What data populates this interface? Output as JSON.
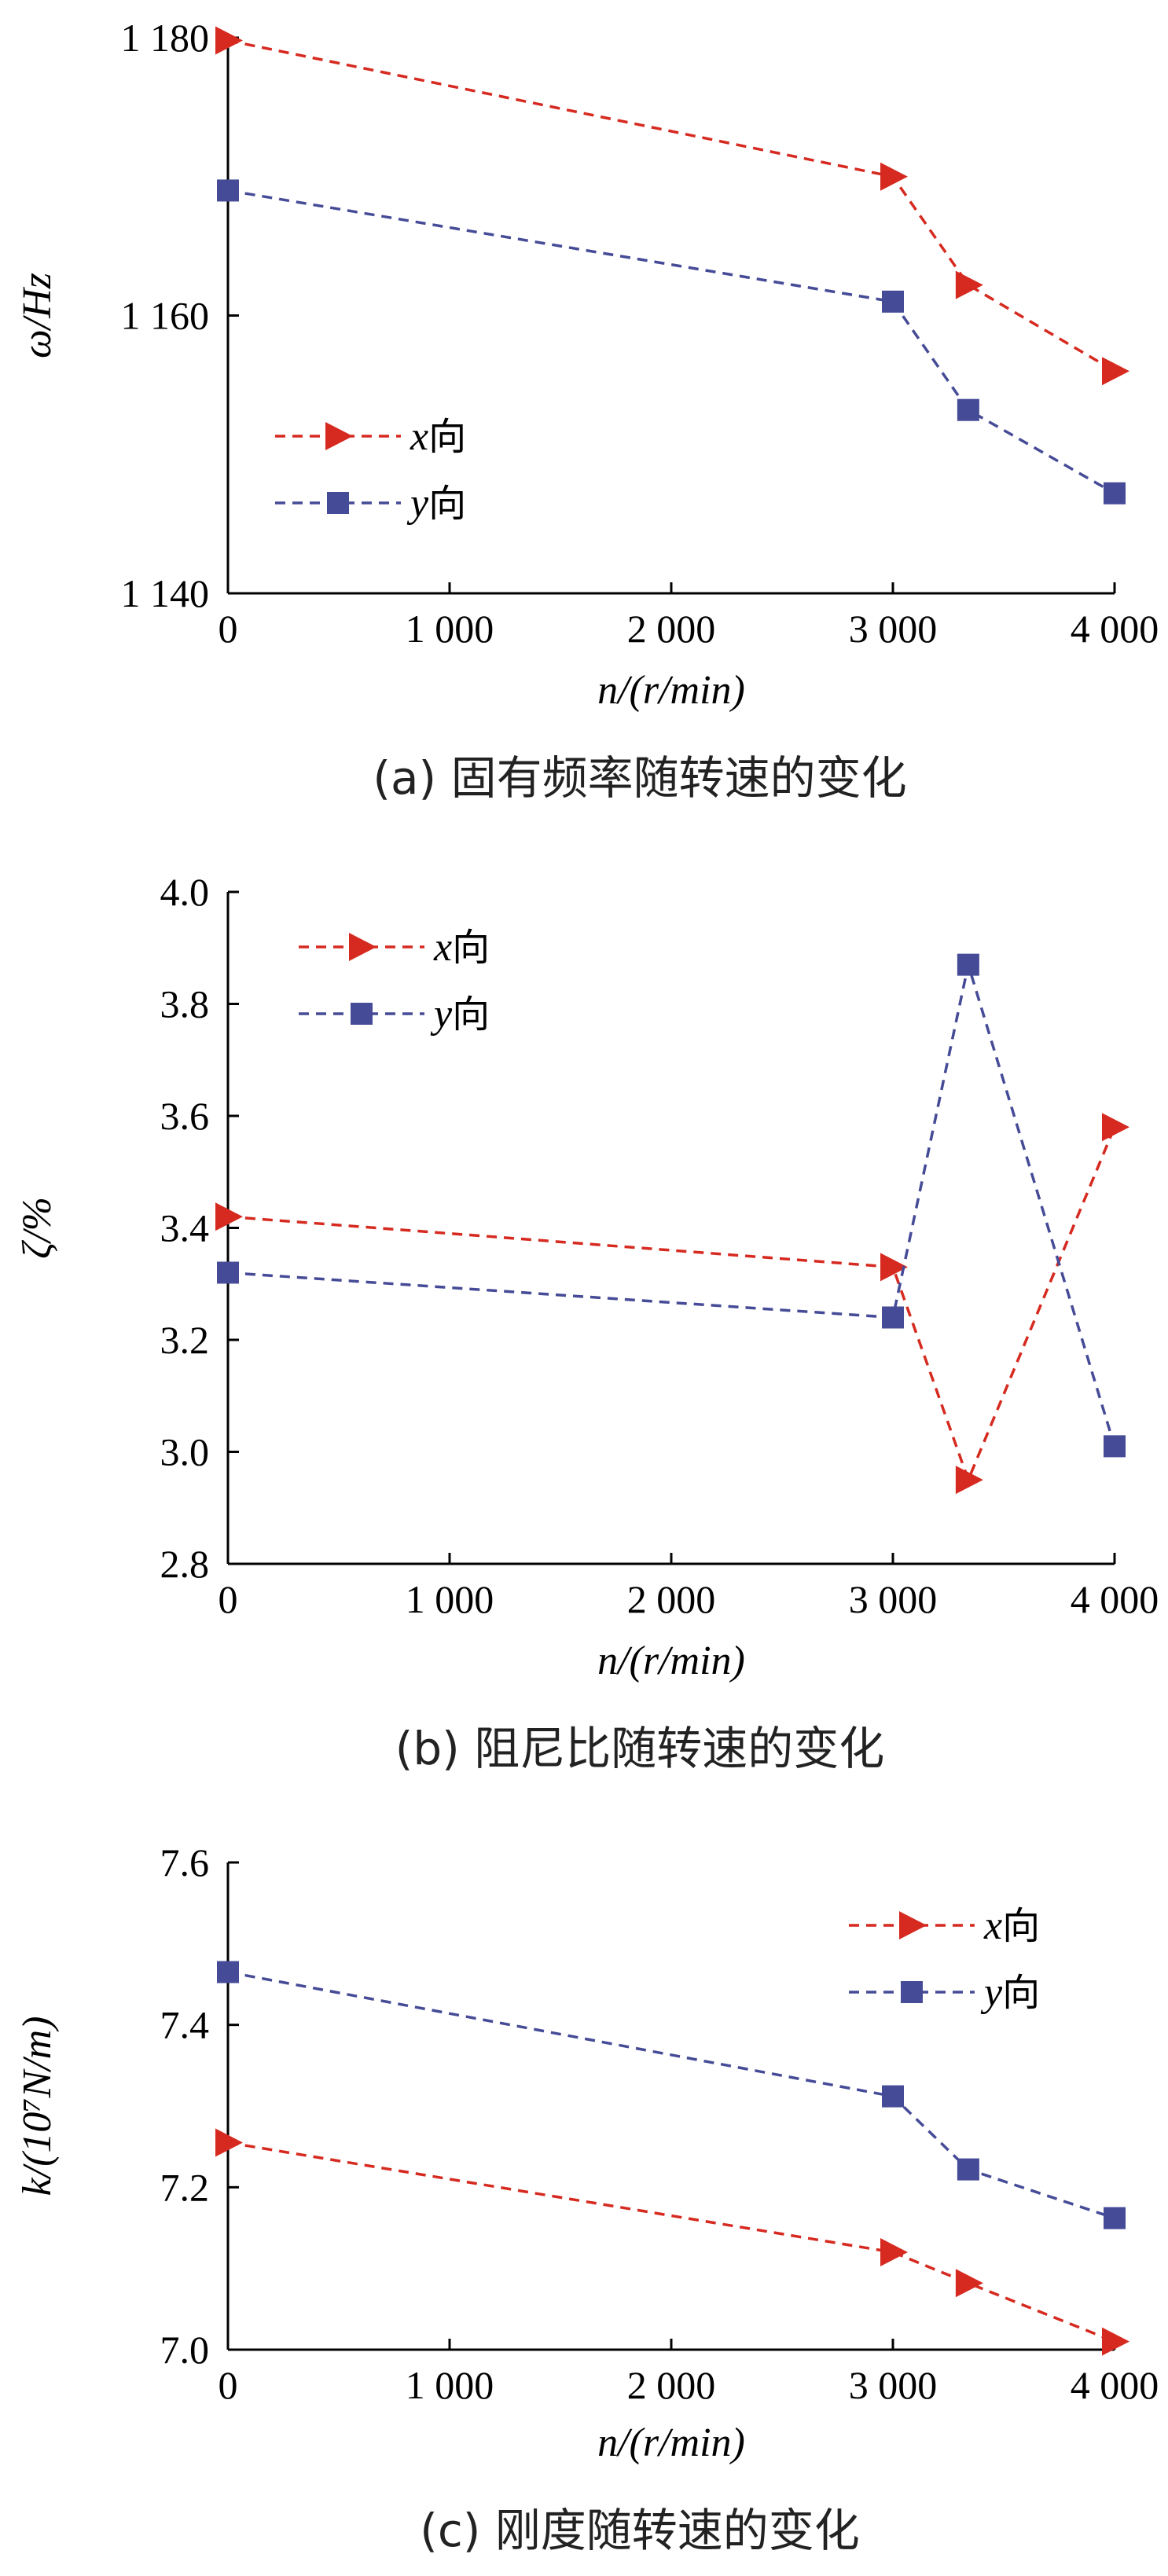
{
  "chart_data": [
    {
      "type": "line",
      "caption": "(a) 固有频率随转速的变化",
      "xlabel": "n/(r/min)",
      "ylabel": "ω/Hz",
      "xlim": [
        0,
        4000
      ],
      "ylim": [
        1140,
        1180
      ],
      "x_ticks": [
        0,
        1000,
        2000,
        3000,
        4000
      ],
      "x_tick_labels": [
        "0",
        "1 000",
        "2 000",
        "3 000",
        "4 000"
      ],
      "y_ticks": [
        1140,
        1160,
        1180
      ],
      "y_tick_labels": [
        "1 140",
        "1 160",
        "1 180"
      ],
      "legend_position": "middle-left",
      "x": [
        0,
        3000,
        3340,
        4000
      ],
      "series": [
        {
          "name": "x向",
          "color": "#d62a20",
          "marker": "triangle-right",
          "values": [
            1179.8,
            1170.0,
            1162.2,
            1156.0
          ]
        },
        {
          "name": "y向",
          "color": "#454b96",
          "marker": "square",
          "values": [
            1169.0,
            1161.0,
            1153.2,
            1147.2
          ]
        }
      ]
    },
    {
      "type": "line",
      "caption": "(b) 阻尼比随转速的变化",
      "xlabel": "n/(r/min)",
      "ylabel": "ζ/%",
      "xlim": [
        0,
        4000
      ],
      "ylim": [
        2.8,
        4.0
      ],
      "x_ticks": [
        0,
        1000,
        2000,
        3000,
        4000
      ],
      "x_tick_labels": [
        "0",
        "1 000",
        "2 000",
        "3 000",
        "4 000"
      ],
      "y_ticks": [
        2.8,
        3.0,
        3.2,
        3.4,
        3.6,
        3.8,
        4.0
      ],
      "y_tick_labels": [
        "2.8",
        "3.0",
        "3.2",
        "3.4",
        "3.6",
        "3.8",
        "4.0"
      ],
      "legend_position": "top-left",
      "x": [
        0,
        3000,
        3340,
        4000
      ],
      "series": [
        {
          "name": "x向",
          "color": "#d62a20",
          "marker": "triangle-right",
          "values": [
            3.42,
            3.33,
            2.95,
            3.58
          ]
        },
        {
          "name": "y向",
          "color": "#454b96",
          "marker": "square",
          "values": [
            3.32,
            3.24,
            3.87,
            3.01
          ]
        }
      ]
    },
    {
      "type": "line",
      "caption": "(c) 刚度随转速的变化",
      "xlabel": "n/(r/min)",
      "ylabel": "k/(10⁷N/m)",
      "xlim": [
        0,
        4000
      ],
      "ylim": [
        7.0,
        7.6
      ],
      "x_ticks": [
        0,
        1000,
        2000,
        3000,
        4000
      ],
      "x_tick_labels": [
        "0",
        "1 000",
        "2 000",
        "3 000",
        "4 000"
      ],
      "y_ticks": [
        7.0,
        7.2,
        7.4,
        7.6
      ],
      "y_tick_labels": [
        "7.0",
        "7.2",
        "7.4",
        "7.6"
      ],
      "legend_position": "top-right",
      "x": [
        0,
        3000,
        3340,
        4000
      ],
      "series": [
        {
          "name": "x向",
          "color": "#d62a20",
          "marker": "triangle-right",
          "values": [
            7.255,
            7.12,
            7.082,
            7.01
          ]
        },
        {
          "name": "y向",
          "color": "#454b96",
          "marker": "square",
          "values": [
            7.465,
            7.312,
            7.222,
            7.162
          ]
        }
      ]
    }
  ]
}
